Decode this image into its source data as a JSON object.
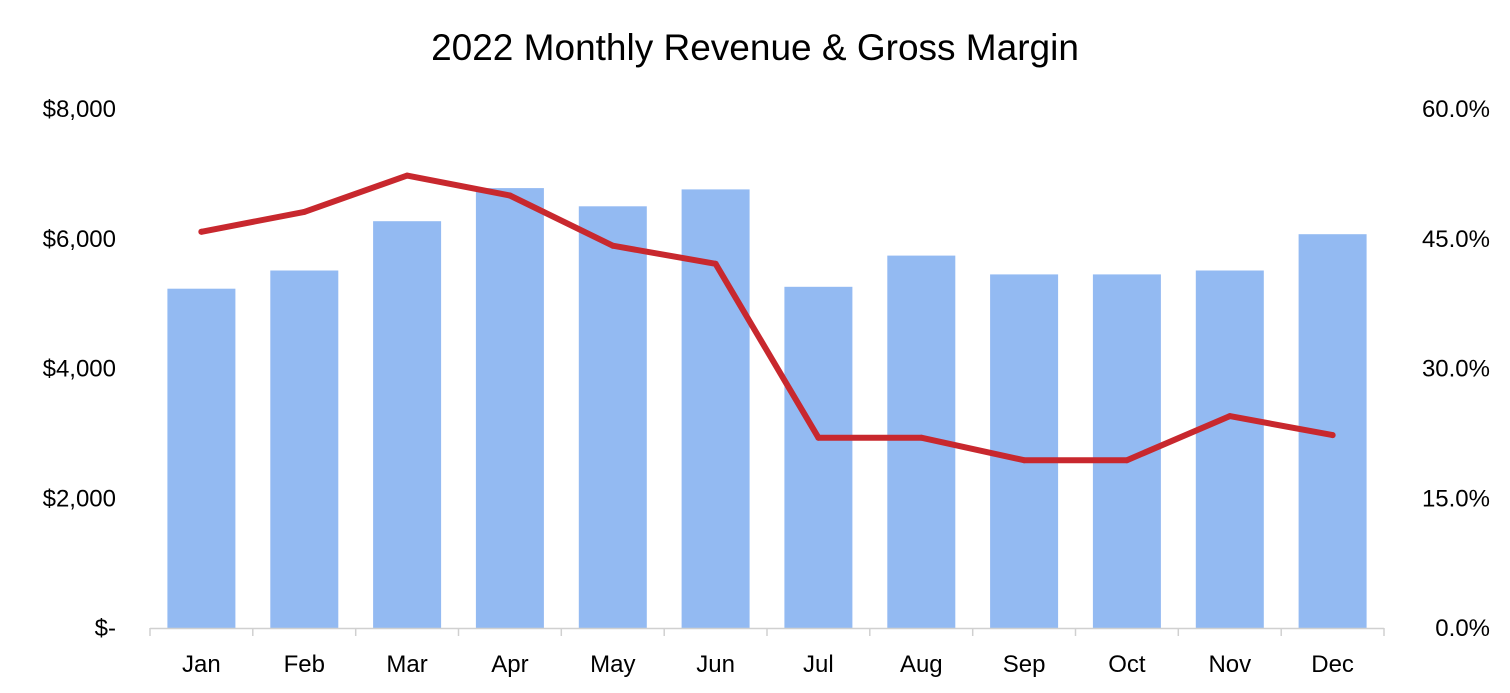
{
  "chart_data": {
    "type": "bar",
    "title": "2022 Monthly Revenue & Gross Margin",
    "xlabel": "",
    "ylabel": "",
    "categories": [
      "Jan",
      "Feb",
      "Mar",
      "Apr",
      "May",
      "Jun",
      "Jul",
      "Aug",
      "Sep",
      "Oct",
      "Nov",
      "Dec"
    ],
    "series": [
      {
        "name": "Revenue",
        "type": "bar",
        "axis": "left",
        "color": "#93BAF2",
        "values": [
          5230,
          5510,
          6270,
          6780,
          6500,
          6760,
          5260,
          5740,
          5450,
          5450,
          5510,
          6070
        ]
      },
      {
        "name": "Gross Margin",
        "type": "line",
        "axis": "right",
        "color": "#C8282E",
        "values": [
          45.8,
          48.1,
          52.3,
          50.0,
          44.2,
          42.1,
          22.0,
          22.0,
          19.4,
          19.4,
          24.5,
          22.3
        ]
      }
    ],
    "ylim": [
      0,
      8000
    ],
    "y2lim": [
      0,
      60
    ],
    "yticks": [
      0,
      2000,
      4000,
      6000,
      8000
    ],
    "yticklabels": [
      "$-",
      "$2,000",
      "$4,000",
      "$6,000",
      "$8,000"
    ],
    "y2ticks": [
      0,
      15,
      30,
      45,
      60
    ],
    "y2ticklabels": [
      "0.0%",
      "15.0%",
      "30.0%",
      "45.0%",
      "60.0%"
    ],
    "grid": false,
    "legend": "none"
  }
}
